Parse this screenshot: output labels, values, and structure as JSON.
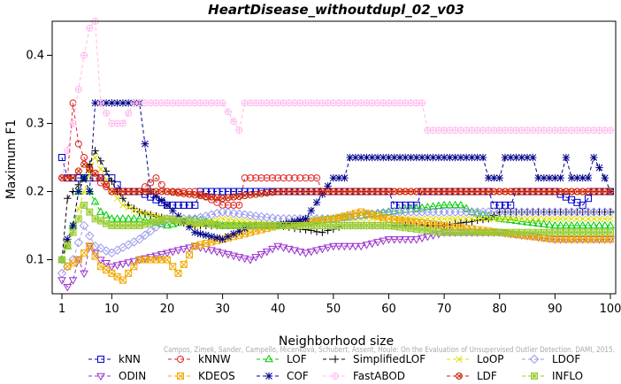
{
  "chart_data": {
    "type": "line",
    "title": "HeartDisease_withoutdupl_02_v03",
    "xlabel": "Neighborhood size",
    "ylabel": "Maximum F1",
    "xlim": [
      1,
      100
    ],
    "ylim": [
      0.05,
      0.45
    ],
    "x_ticks": [
      1,
      10,
      20,
      30,
      40,
      50,
      60,
      70,
      80,
      90,
      100
    ],
    "y_ticks": [
      0.1,
      0.2,
      0.3,
      0.4
    ],
    "x_tick_labels": [
      "1",
      "10",
      "20",
      "30",
      "40",
      "50",
      "60",
      "70",
      "80",
      "90",
      "100"
    ],
    "y_tick_labels": [
      "0.1",
      "0.2",
      "0.3",
      "0.4"
    ],
    "legend_position": "bottom",
    "credit": "Campos, Zimek, Sander, Campello, Micenková, Schubert, Assent, Houle: On the Evaluation of Unsupervised Outlier Detection. DAMI, 2015.",
    "series": [
      {
        "name": "kNN",
        "color": "#0000cc",
        "marker": "square",
        "dash": "4,3",
        "anchors": [
          [
            1,
            0.25
          ],
          [
            2,
            0.22
          ],
          [
            3,
            0.22
          ],
          [
            5,
            0.22
          ],
          [
            7,
            0.22
          ],
          [
            10,
            0.22
          ],
          [
            12,
            0.2
          ],
          [
            15,
            0.2
          ],
          [
            20,
            0.18
          ],
          [
            25,
            0.18
          ],
          [
            26,
            0.2
          ],
          [
            35,
            0.2
          ],
          [
            60,
            0.2
          ],
          [
            61,
            0.18
          ],
          [
            65,
            0.18
          ],
          [
            66,
            0.2
          ],
          [
            70,
            0.2
          ],
          [
            78,
            0.2
          ],
          [
            79,
            0.18
          ],
          [
            82,
            0.18
          ],
          [
            83,
            0.2
          ],
          [
            90,
            0.2
          ],
          [
            95,
            0.18
          ],
          [
            97,
            0.2
          ],
          [
            100,
            0.2
          ]
        ]
      },
      {
        "name": "kNNW",
        "color": "#dd2222",
        "marker": "circle",
        "dash": "4,3",
        "anchors": [
          [
            1,
            0.22
          ],
          [
            2,
            0.22
          ],
          [
            3,
            0.33
          ],
          [
            4,
            0.27
          ],
          [
            5,
            0.25
          ],
          [
            7,
            0.22
          ],
          [
            10,
            0.2
          ],
          [
            15,
            0.2
          ],
          [
            18,
            0.22
          ],
          [
            20,
            0.2
          ],
          [
            25,
            0.2
          ],
          [
            30,
            0.18
          ],
          [
            33,
            0.18
          ],
          [
            34,
            0.22
          ],
          [
            47,
            0.22
          ],
          [
            48,
            0.2
          ],
          [
            100,
            0.2
          ]
        ]
      },
      {
        "name": "LOF",
        "color": "#00cc00",
        "marker": "triangle-up",
        "dash": "4,3",
        "anchors": [
          [
            1,
            0.1
          ],
          [
            2,
            0.12
          ],
          [
            3,
            0.15
          ],
          [
            4,
            0.2
          ],
          [
            5,
            0.22
          ],
          [
            6,
            0.2
          ],
          [
            8,
            0.17
          ],
          [
            10,
            0.16
          ],
          [
            15,
            0.16
          ],
          [
            20,
            0.15
          ],
          [
            25,
            0.16
          ],
          [
            30,
            0.15
          ],
          [
            40,
            0.15
          ],
          [
            50,
            0.16
          ],
          [
            60,
            0.17
          ],
          [
            70,
            0.18
          ],
          [
            73,
            0.18
          ],
          [
            75,
            0.17
          ],
          [
            80,
            0.16
          ],
          [
            90,
            0.15
          ],
          [
            100,
            0.15
          ]
        ]
      },
      {
        "name": "SimplifiedLOF",
        "color": "#000000",
        "marker": "plus",
        "dash": "4,3",
        "anchors": [
          [
            1,
            0.1
          ],
          [
            2,
            0.19
          ],
          [
            3,
            0.2
          ],
          [
            5,
            0.22
          ],
          [
            7,
            0.26
          ],
          [
            9,
            0.23
          ],
          [
            11,
            0.2
          ],
          [
            13,
            0.18
          ],
          [
            15,
            0.17
          ],
          [
            20,
            0.16
          ],
          [
            25,
            0.15
          ],
          [
            30,
            0.15
          ],
          [
            40,
            0.15
          ],
          [
            48,
            0.14
          ],
          [
            52,
            0.15
          ],
          [
            60,
            0.15
          ],
          [
            70,
            0.15
          ],
          [
            78,
            0.16
          ],
          [
            80,
            0.17
          ],
          [
            90,
            0.17
          ],
          [
            100,
            0.17
          ]
        ]
      },
      {
        "name": "LoOP",
        "color": "#dddd00",
        "marker": "x",
        "dash": "4,3",
        "anchors": [
          [
            1,
            0.1
          ],
          [
            3,
            0.15
          ],
          [
            5,
            0.2
          ],
          [
            7,
            0.25
          ],
          [
            10,
            0.2
          ],
          [
            12,
            0.18
          ],
          [
            15,
            0.17
          ],
          [
            20,
            0.16
          ],
          [
            25,
            0.15
          ],
          [
            30,
            0.16
          ],
          [
            40,
            0.15
          ],
          [
            50,
            0.16
          ],
          [
            60,
            0.16
          ],
          [
            70,
            0.16
          ],
          [
            80,
            0.16
          ],
          [
            90,
            0.16
          ],
          [
            100,
            0.16
          ]
        ]
      },
      {
        "name": "LDOF",
        "color": "#9999ee",
        "marker": "diamond",
        "dash": "4,3",
        "anchors": [
          [
            1,
            0.08
          ],
          [
            3,
            0.1
          ],
          [
            5,
            0.15
          ],
          [
            7,
            0.12
          ],
          [
            10,
            0.11
          ],
          [
            15,
            0.13
          ],
          [
            20,
            0.16
          ],
          [
            25,
            0.16
          ],
          [
            30,
            0.17
          ],
          [
            40,
            0.16
          ],
          [
            50,
            0.16
          ],
          [
            60,
            0.17
          ],
          [
            70,
            0.17
          ],
          [
            80,
            0.17
          ],
          [
            90,
            0.17
          ],
          [
            100,
            0.17
          ]
        ]
      },
      {
        "name": "ODIN",
        "color": "#9933cc",
        "marker": "triangle-down",
        "dash": "4,3",
        "anchors": [
          [
            1,
            0.07
          ],
          [
            2,
            0.06
          ],
          [
            3,
            0.07
          ],
          [
            4,
            0.1
          ],
          [
            5,
            0.08
          ],
          [
            6,
            0.12
          ],
          [
            8,
            0.1
          ],
          [
            10,
            0.09
          ],
          [
            15,
            0.1
          ],
          [
            20,
            0.11
          ],
          [
            25,
            0.12
          ],
          [
            30,
            0.11
          ],
          [
            35,
            0.1
          ],
          [
            40,
            0.12
          ],
          [
            45,
            0.11
          ],
          [
            50,
            0.12
          ],
          [
            55,
            0.12
          ],
          [
            60,
            0.13
          ],
          [
            65,
            0.13
          ],
          [
            70,
            0.14
          ],
          [
            80,
            0.14
          ],
          [
            90,
            0.13
          ],
          [
            100,
            0.13
          ]
        ]
      },
      {
        "name": "KDEOS",
        "color": "#f0aa00",
        "marker": "square-x",
        "dash": "4,3",
        "anchors": [
          [
            1,
            0.1
          ],
          [
            2,
            0.09
          ],
          [
            4,
            0.1
          ],
          [
            6,
            0.12
          ],
          [
            8,
            0.09
          ],
          [
            10,
            0.08
          ],
          [
            12,
            0.07
          ],
          [
            15,
            0.1
          ],
          [
            20,
            0.1
          ],
          [
            22,
            0.08
          ],
          [
            25,
            0.12
          ],
          [
            30,
            0.13
          ],
          [
            40,
            0.15
          ],
          [
            50,
            0.16
          ],
          [
            55,
            0.17
          ],
          [
            60,
            0.16
          ],
          [
            70,
            0.15
          ],
          [
            80,
            0.14
          ],
          [
            90,
            0.13
          ],
          [
            100,
            0.13
          ]
        ]
      },
      {
        "name": "COF",
        "color": "#000088",
        "marker": "asterisk",
        "dash": "4,3",
        "anchors": [
          [
            1,
            0.1
          ],
          [
            2,
            0.13
          ],
          [
            3,
            0.15
          ],
          [
            4,
            0.2
          ],
          [
            5,
            0.22
          ],
          [
            6,
            0.2
          ],
          [
            7,
            0.33
          ],
          [
            15,
            0.33
          ],
          [
            16,
            0.27
          ],
          [
            17,
            0.2
          ],
          [
            20,
            0.18
          ],
          [
            25,
            0.14
          ],
          [
            30,
            0.13
          ],
          [
            35,
            0.15
          ],
          [
            40,
            0.15
          ],
          [
            45,
            0.16
          ],
          [
            50,
            0.22
          ],
          [
            52,
            0.22
          ],
          [
            53,
            0.25
          ],
          [
            77,
            0.25
          ],
          [
            78,
            0.22
          ],
          [
            80,
            0.22
          ],
          [
            81,
            0.25
          ],
          [
            86,
            0.25
          ],
          [
            87,
            0.22
          ],
          [
            91,
            0.22
          ],
          [
            92,
            0.25
          ],
          [
            93,
            0.22
          ],
          [
            96,
            0.22
          ],
          [
            97,
            0.25
          ],
          [
            99,
            0.22
          ],
          [
            100,
            0.2
          ]
        ]
      },
      {
        "name": "FastABOD",
        "color": "#ffbbee",
        "marker": "circle-plus",
        "dash": "4,3",
        "anchors": [
          [
            1,
            0.22
          ],
          [
            3,
            0.3
          ],
          [
            5,
            0.4
          ],
          [
            6,
            0.44
          ],
          [
            7,
            0.45
          ],
          [
            8,
            0.33
          ],
          [
            10,
            0.3
          ],
          [
            12,
            0.3
          ],
          [
            14,
            0.33
          ],
          [
            30,
            0.33
          ],
          [
            33,
            0.29
          ],
          [
            34,
            0.33
          ],
          [
            60,
            0.33
          ],
          [
            66,
            0.33
          ],
          [
            67,
            0.29
          ],
          [
            80,
            0.29
          ],
          [
            90,
            0.29
          ],
          [
            100,
            0.29
          ]
        ]
      },
      {
        "name": "LDF",
        "color": "#cc2200",
        "marker": "circle-cross",
        "dash": "4,3",
        "anchors": [
          [
            1,
            0.22
          ],
          [
            3,
            0.22
          ],
          [
            5,
            0.24
          ],
          [
            8,
            0.22
          ],
          [
            10,
            0.2
          ],
          [
            15,
            0.2
          ],
          [
            20,
            0.2
          ],
          [
            30,
            0.19
          ],
          [
            40,
            0.2
          ],
          [
            60,
            0.2
          ],
          [
            80,
            0.2
          ],
          [
            100,
            0.2
          ]
        ]
      },
      {
        "name": "INFLO",
        "color": "#99cc33",
        "marker": "square-star",
        "dash": "4,3",
        "anchors": [
          [
            1,
            0.1
          ],
          [
            2,
            0.12
          ],
          [
            3,
            0.14
          ],
          [
            5,
            0.18
          ],
          [
            7,
            0.16
          ],
          [
            10,
            0.15
          ],
          [
            15,
            0.15
          ],
          [
            20,
            0.16
          ],
          [
            30,
            0.15
          ],
          [
            40,
            0.15
          ],
          [
            50,
            0.15
          ],
          [
            60,
            0.15
          ],
          [
            70,
            0.14
          ],
          [
            80,
            0.14
          ],
          [
            90,
            0.14
          ],
          [
            100,
            0.14
          ]
        ]
      }
    ]
  }
}
